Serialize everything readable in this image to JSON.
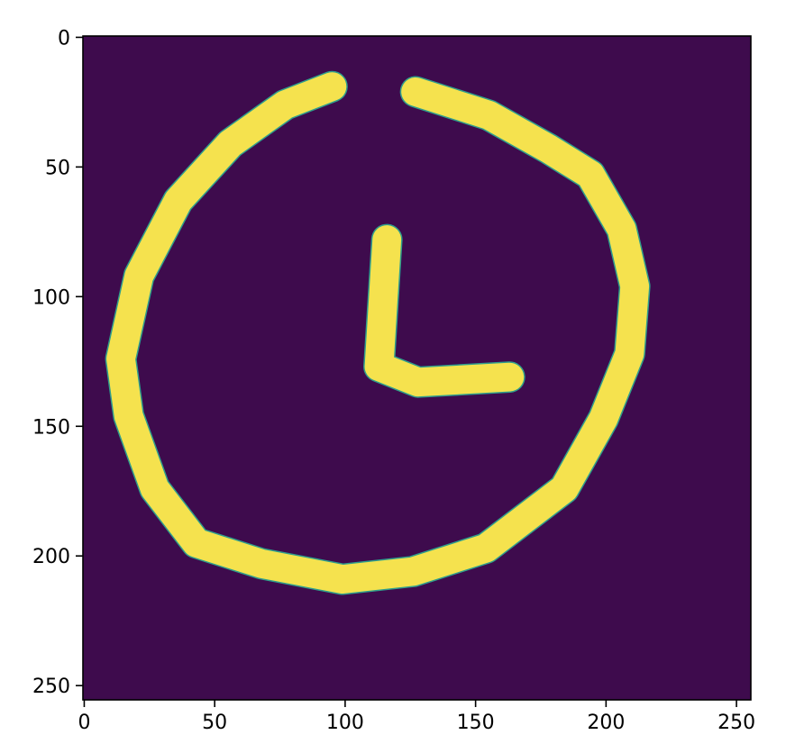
{
  "chart_data": {
    "type": "heatmap",
    "title": "",
    "xlabel": "",
    "ylabel": "",
    "image_size": [
      256,
      256
    ],
    "xlim": [
      0,
      255
    ],
    "ylim": [
      255,
      0
    ],
    "x_ticks": [
      {
        "value": 0,
        "label": "0"
      },
      {
        "value": 50,
        "label": "50"
      },
      {
        "value": 100,
        "label": "100"
      },
      {
        "value": 150,
        "label": "150"
      },
      {
        "value": 200,
        "label": "200"
      },
      {
        "value": 250,
        "label": "250"
      }
    ],
    "y_ticks": [
      {
        "value": 0,
        "label": "0"
      },
      {
        "value": 50,
        "label": "50"
      },
      {
        "value": 100,
        "label": "100"
      },
      {
        "value": 150,
        "label": "150"
      },
      {
        "value": 200,
        "label": "200"
      },
      {
        "value": 250,
        "label": "250"
      }
    ],
    "colors": {
      "background": "#3e0b4d",
      "stroke": "#f5e24e",
      "edge": "#2f9e8c"
    },
    "stroke_width_px": 11,
    "strokes": [
      {
        "name": "clock-face",
        "points": [
          [
            95,
            19
          ],
          [
            77,
            26
          ],
          [
            56,
            41
          ],
          [
            36,
            63
          ],
          [
            21,
            92
          ],
          [
            14,
            124
          ],
          [
            17,
            146
          ],
          [
            27,
            174
          ],
          [
            43,
            195
          ],
          [
            68,
            203
          ],
          [
            99,
            209
          ],
          [
            126,
            206
          ],
          [
            154,
            197
          ],
          [
            184,
            174
          ],
          [
            199,
            147
          ],
          [
            209,
            122
          ],
          [
            211,
            96
          ],
          [
            206,
            74
          ],
          [
            194,
            53
          ],
          [
            178,
            43
          ],
          [
            155,
            30
          ],
          [
            127,
            21
          ]
        ]
      },
      {
        "name": "clock-hands",
        "points": [
          [
            116,
            78
          ],
          [
            113,
            127
          ],
          [
            128,
            133
          ],
          [
            163,
            131
          ]
        ]
      }
    ]
  }
}
